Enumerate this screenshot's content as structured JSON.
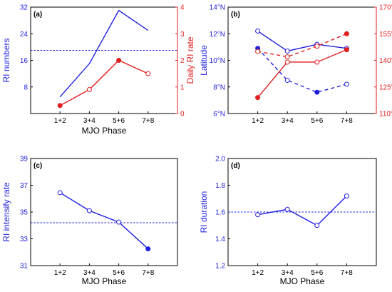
{
  "colors": {
    "blue": "#1f1fe0",
    "red": "#e01f1f",
    "axis": "#000000"
  },
  "chart_data": [
    {
      "type": "line",
      "panel_label": "(a)",
      "xlabel": "MJO Phase",
      "categories": [
        "1+2",
        "3+4",
        "5+6",
        "7+8"
      ],
      "y_left": {
        "label": "RI numbers",
        "ticks": [
          "8",
          "16",
          "24",
          "32"
        ],
        "lim": [
          0,
          32
        ],
        "color": "blue"
      },
      "y_right": {
        "label": "Daily RI rate",
        "ticks": [
          "0",
          "1",
          "2",
          "3",
          "4"
        ],
        "lim": [
          0,
          4
        ],
        "color": "red"
      },
      "series": [
        {
          "axis": "left",
          "color": "blue",
          "dash": false,
          "values": [
            5,
            15,
            31,
            25
          ],
          "markers": []
        },
        {
          "axis": "right",
          "color": "red",
          "dash": false,
          "values": [
            0.3,
            0.9,
            2.0,
            1.5
          ],
          "markers": [
            {
              "i": 0,
              "fill": true
            },
            {
              "i": 1,
              "fill": false
            },
            {
              "i": 2,
              "fill": true
            },
            {
              "i": 3,
              "fill": false
            }
          ]
        }
      ],
      "hline": {
        "axis": "left",
        "value": 19,
        "color": "blue"
      }
    },
    {
      "type": "line",
      "panel_label": "(b)",
      "xlabel": "",
      "categories": [
        "1+2",
        "3+4",
        "5+6",
        "7+8"
      ],
      "y_left": {
        "label": "Latitude",
        "ticks": [
          "6°N",
          "8°N",
          "10°N",
          "12°N",
          "14°N"
        ],
        "lim": [
          6,
          14
        ],
        "color": "blue"
      },
      "y_right": {
        "label": "Longitude",
        "ticks": [
          "110°E",
          "125°E",
          "140°E",
          "155°E",
          "170°E"
        ],
        "lim": [
          110,
          170
        ],
        "color": "red"
      },
      "series": [
        {
          "axis": "left",
          "color": "blue",
          "dash": false,
          "values": [
            12.2,
            10.7,
            11.2,
            10.9
          ],
          "markers": [
            {
              "i": 0,
              "fill": false
            },
            {
              "i": 1,
              "fill": false
            },
            {
              "i": 2,
              "fill": false
            },
            {
              "i": 3,
              "fill": false
            }
          ]
        },
        {
          "axis": "left",
          "color": "blue",
          "dash": true,
          "values": [
            10.9,
            8.5,
            7.6,
            8.2
          ],
          "markers": [
            {
              "i": 0,
              "fill": true
            },
            {
              "i": 1,
              "fill": false
            },
            {
              "i": 2,
              "fill": true
            },
            {
              "i": 3,
              "fill": false
            }
          ]
        },
        {
          "axis": "right",
          "color": "red",
          "dash": false,
          "values": [
            119,
            139,
            139,
            146
          ],
          "markers": [
            {
              "i": 0,
              "fill": true
            },
            {
              "i": 1,
              "fill": false
            },
            {
              "i": 2,
              "fill": false
            },
            {
              "i": 3,
              "fill": true
            }
          ]
        },
        {
          "axis": "right",
          "color": "red",
          "dash": true,
          "values": [
            145,
            142,
            148,
            155
          ],
          "markers": [
            {
              "i": 0,
              "fill": false
            },
            {
              "i": 1,
              "fill": false
            },
            {
              "i": 2,
              "fill": false
            },
            {
              "i": 3,
              "fill": true
            }
          ]
        }
      ],
      "hline": null
    },
    {
      "type": "line",
      "panel_label": "(c)",
      "xlabel": "MJO Phase",
      "categories": [
        "1+2",
        "3+4",
        "5+6",
        "7+8"
      ],
      "y_left": {
        "label": "RI intensify rate",
        "ticks": [
          "31",
          "33",
          "35",
          "37",
          "39"
        ],
        "lim": [
          31,
          39
        ],
        "color": "blue"
      },
      "y_right": null,
      "series": [
        {
          "axis": "left",
          "color": "blue",
          "dash": false,
          "values": [
            36.45,
            35.1,
            34.25,
            32.25
          ],
          "markers": [
            {
              "i": 0,
              "fill": false
            },
            {
              "i": 1,
              "fill": false
            },
            {
              "i": 2,
              "fill": false
            },
            {
              "i": 3,
              "fill": true
            }
          ]
        }
      ],
      "hline": {
        "axis": "left",
        "value": 34.2,
        "color": "blue"
      }
    },
    {
      "type": "line",
      "panel_label": "(d)",
      "xlabel": "MJO Phase",
      "categories": [
        "1+2",
        "3+4",
        "5+6",
        "7+8"
      ],
      "y_left": {
        "label": "RI duration",
        "ticks": [
          "1.2",
          "1.4",
          "1.6",
          "1.8",
          "2.0"
        ],
        "lim": [
          1.2,
          2.0
        ],
        "color": "blue"
      },
      "y_right": null,
      "series": [
        {
          "axis": "left",
          "color": "blue",
          "dash": false,
          "values": [
            1.58,
            1.62,
            1.5,
            1.72
          ],
          "markers": [
            {
              "i": 0,
              "fill": false
            },
            {
              "i": 1,
              "fill": false
            },
            {
              "i": 2,
              "fill": false
            },
            {
              "i": 3,
              "fill": false
            }
          ]
        }
      ],
      "hline": {
        "axis": "left",
        "value": 1.6,
        "color": "blue"
      }
    }
  ]
}
